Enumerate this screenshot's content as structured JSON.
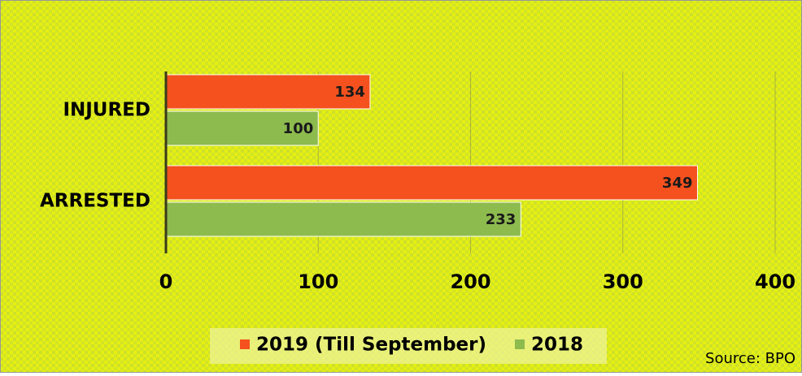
{
  "chart_data": {
    "type": "bar",
    "orientation": "horizontal",
    "categories": [
      "INJURED",
      "ARRESTED"
    ],
    "series": [
      {
        "name": "2019 (Till September)",
        "color": "#f4511e",
        "values": [
          134,
          349
        ]
      },
      {
        "name": "2018",
        "color": "#8dbb4e",
        "values": [
          100,
          233
        ]
      }
    ],
    "xlim": [
      0,
      400
    ],
    "xticks": [
      0,
      100,
      200,
      300,
      400
    ],
    "grid": true,
    "legend": "bottom",
    "annotation": "Source: BPO"
  }
}
